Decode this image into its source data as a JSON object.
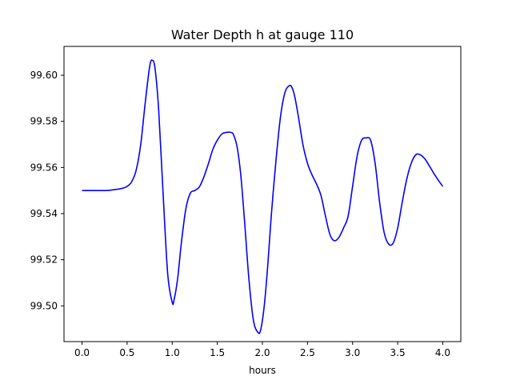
{
  "chart_data": {
    "type": "line",
    "title": "Water Depth h at gauge 110",
    "xlabel": "hours",
    "ylabel": "",
    "xlim": [
      -0.2,
      4.2
    ],
    "ylim": [
      99.4845,
      99.6125
    ],
    "xticks": [
      0.0,
      0.5,
      1.0,
      1.5,
      2.0,
      2.5,
      3.0,
      3.5,
      4.0
    ],
    "xtick_labels": [
      "0.0",
      "0.5",
      "1.0",
      "1.5",
      "2.0",
      "2.5",
      "3.0",
      "3.5",
      "4.0"
    ],
    "yticks": [
      99.5,
      99.52,
      99.54,
      99.56,
      99.58,
      99.6
    ],
    "ytick_labels": [
      "99.50",
      "99.52",
      "99.54",
      "99.56",
      "99.58",
      "99.60"
    ],
    "grid": false,
    "series": [
      {
        "color": "#0000ff",
        "x": [
          0.0,
          0.1,
          0.2,
          0.3,
          0.4,
          0.45,
          0.5,
          0.55,
          0.6,
          0.65,
          0.7,
          0.75,
          0.78,
          0.81,
          0.85,
          0.9,
          0.95,
          1.0,
          1.02,
          1.06,
          1.1,
          1.15,
          1.2,
          1.25,
          1.3,
          1.35,
          1.4,
          1.45,
          1.5,
          1.55,
          1.6,
          1.65,
          1.68,
          1.72,
          1.76,
          1.8,
          1.85,
          1.9,
          1.95,
          1.98,
          2.02,
          2.06,
          2.1,
          2.15,
          2.2,
          2.25,
          2.3,
          2.33,
          2.36,
          2.4,
          2.45,
          2.5,
          2.55,
          2.6,
          2.65,
          2.7,
          2.75,
          2.8,
          2.85,
          2.9,
          2.95,
          3.0,
          3.05,
          3.1,
          3.15,
          3.2,
          3.25,
          3.3,
          3.35,
          3.4,
          3.45,
          3.5,
          3.55,
          3.6,
          3.65,
          3.7,
          3.75,
          3.8,
          3.85,
          3.9,
          3.95,
          4.0
        ],
        "y": [
          99.55,
          99.55,
          99.55,
          99.5501,
          99.5506,
          99.551,
          99.5518,
          99.5538,
          99.5588,
          99.5698,
          99.5878,
          99.6038,
          99.6065,
          99.6028,
          99.5848,
          99.5478,
          99.5138,
          99.5015,
          99.5025,
          99.5118,
          99.5268,
          99.5418,
          99.5488,
          99.55,
          99.5515,
          99.5558,
          99.5615,
          99.5678,
          99.5718,
          99.5745,
          99.5752,
          99.5752,
          99.5742,
          99.5688,
          99.5568,
          99.5378,
          99.5118,
          99.4938,
          99.4885,
          99.4895,
          99.4998,
          99.5178,
          99.5398,
          99.5628,
          99.5818,
          99.5925,
          99.5955,
          99.5945,
          99.5905,
          99.5818,
          99.5698,
          99.5618,
          99.5568,
          99.5528,
          99.5478,
          99.5388,
          99.5308,
          99.5282,
          99.5298,
          99.5338,
          99.5388,
          99.5518,
          99.5648,
          99.5718,
          99.5728,
          99.5718,
          99.5618,
          99.5448,
          99.5318,
          99.5268,
          99.5272,
          99.5338,
          99.5448,
          99.5548,
          99.5618,
          99.5655,
          99.5655,
          99.5638,
          99.5608,
          99.5575,
          99.5545,
          99.5518
        ]
      }
    ]
  }
}
